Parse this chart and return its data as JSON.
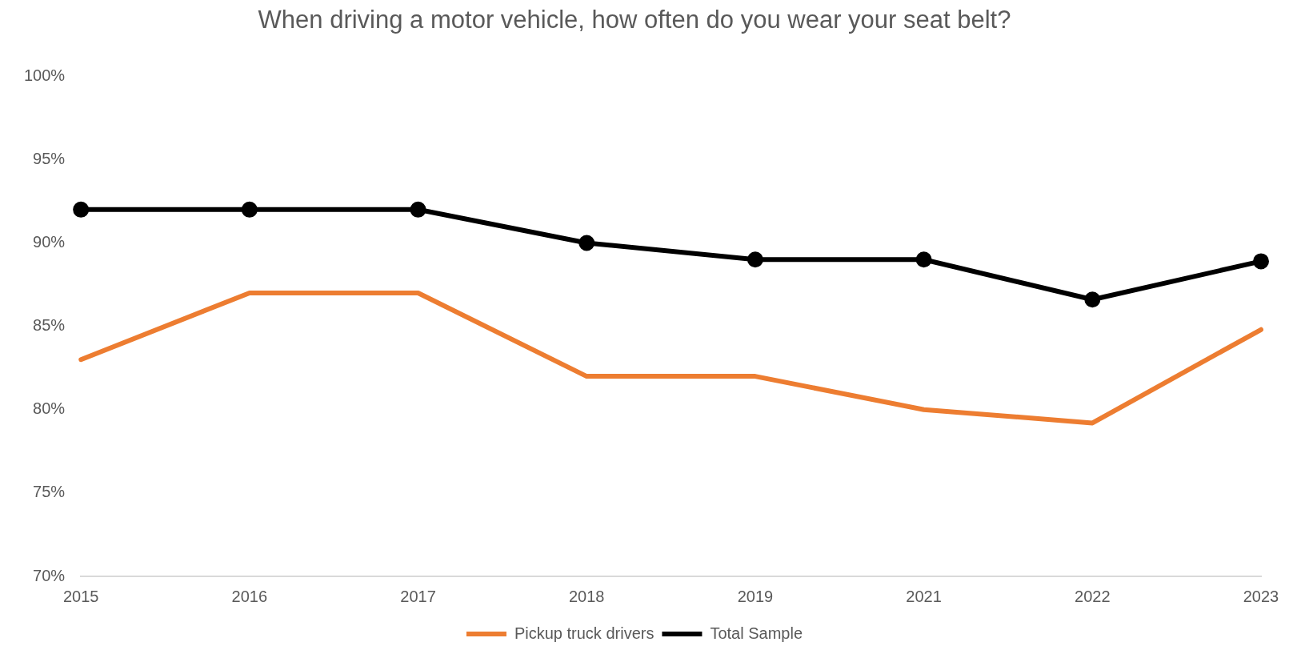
{
  "chart_data": {
    "type": "line",
    "title": "When driving a motor vehicle, how often do you wear your seat belt?",
    "categories": [
      "2015",
      "2016",
      "2017",
      "2018",
      "2019",
      "2021",
      "2022",
      "2023"
    ],
    "series": [
      {
        "name": "Pickup truck drivers",
        "color": "#ed7d31",
        "marker": "none",
        "values": [
          83,
          87,
          87,
          82,
          82,
          80,
          79.2,
          84.8
        ]
      },
      {
        "name": "Total Sample",
        "color": "#000000",
        "marker": "circle",
        "values": [
          92,
          92,
          92,
          90,
          89,
          89,
          86.6,
          88.9
        ]
      }
    ],
    "ylim": [
      70,
      100
    ],
    "yticks": [
      {
        "value": 70,
        "label": "70%"
      },
      {
        "value": 75,
        "label": "75%"
      },
      {
        "value": 80,
        "label": "80%"
      },
      {
        "value": 85,
        "label": "85%"
      },
      {
        "value": 90,
        "label": "90%"
      },
      {
        "value": 95,
        "label": "95%"
      },
      {
        "value": 100,
        "label": "100%"
      }
    ],
    "grid": false,
    "legend": "bottom",
    "line_style": "solid"
  }
}
